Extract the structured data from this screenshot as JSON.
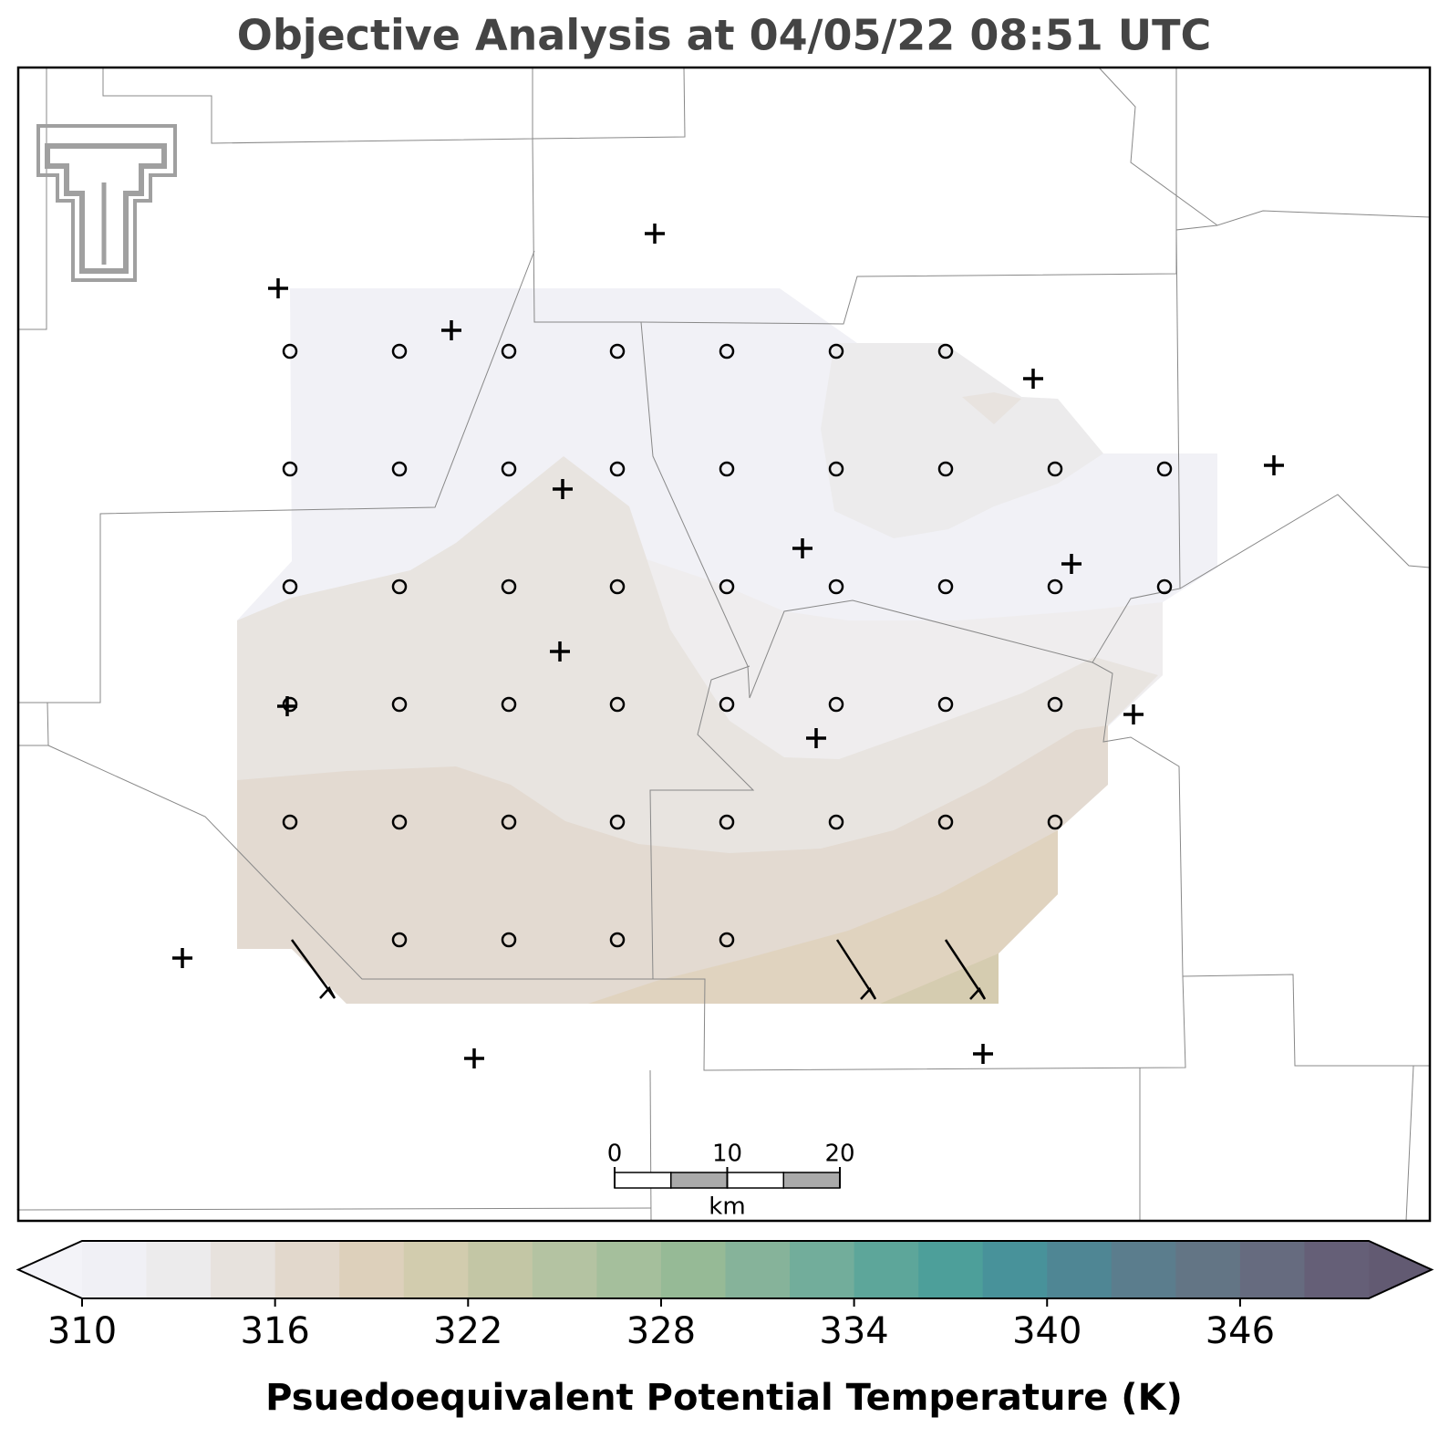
{
  "title": "Objective Analysis at 04/05/22 08:51 UTC",
  "colorbar": {
    "label": "Psuedoequivalent Potential Temperature (K)",
    "levels": [
      310,
      312,
      314,
      316,
      318,
      320,
      322,
      324,
      326,
      328,
      330,
      332,
      334,
      336,
      338,
      340,
      342,
      344,
      346,
      348,
      350
    ],
    "colors": [
      "#f0f0f5",
      "#ecebec",
      "#e7e2dd",
      "#e2d8cc",
      "#ddd0bb",
      "#d2ccae",
      "#c3c6a5",
      "#b4c3a2",
      "#a5bf9c",
      "#96ba96",
      "#86b39a",
      "#72ad9b",
      "#5da69a",
      "#4d9f9a",
      "#48929a",
      "#4f8694",
      "#5b7d8d",
      "#637585",
      "#666b7f",
      "#655f77"
    ],
    "under_color": "#f3f3f8",
    "over_color": "#625a72",
    "ticks": [
      310,
      316,
      322,
      328,
      334,
      340,
      346
    ]
  },
  "scale_bar": {
    "ticks": [
      0,
      10,
      20
    ],
    "unit": "km"
  }
}
